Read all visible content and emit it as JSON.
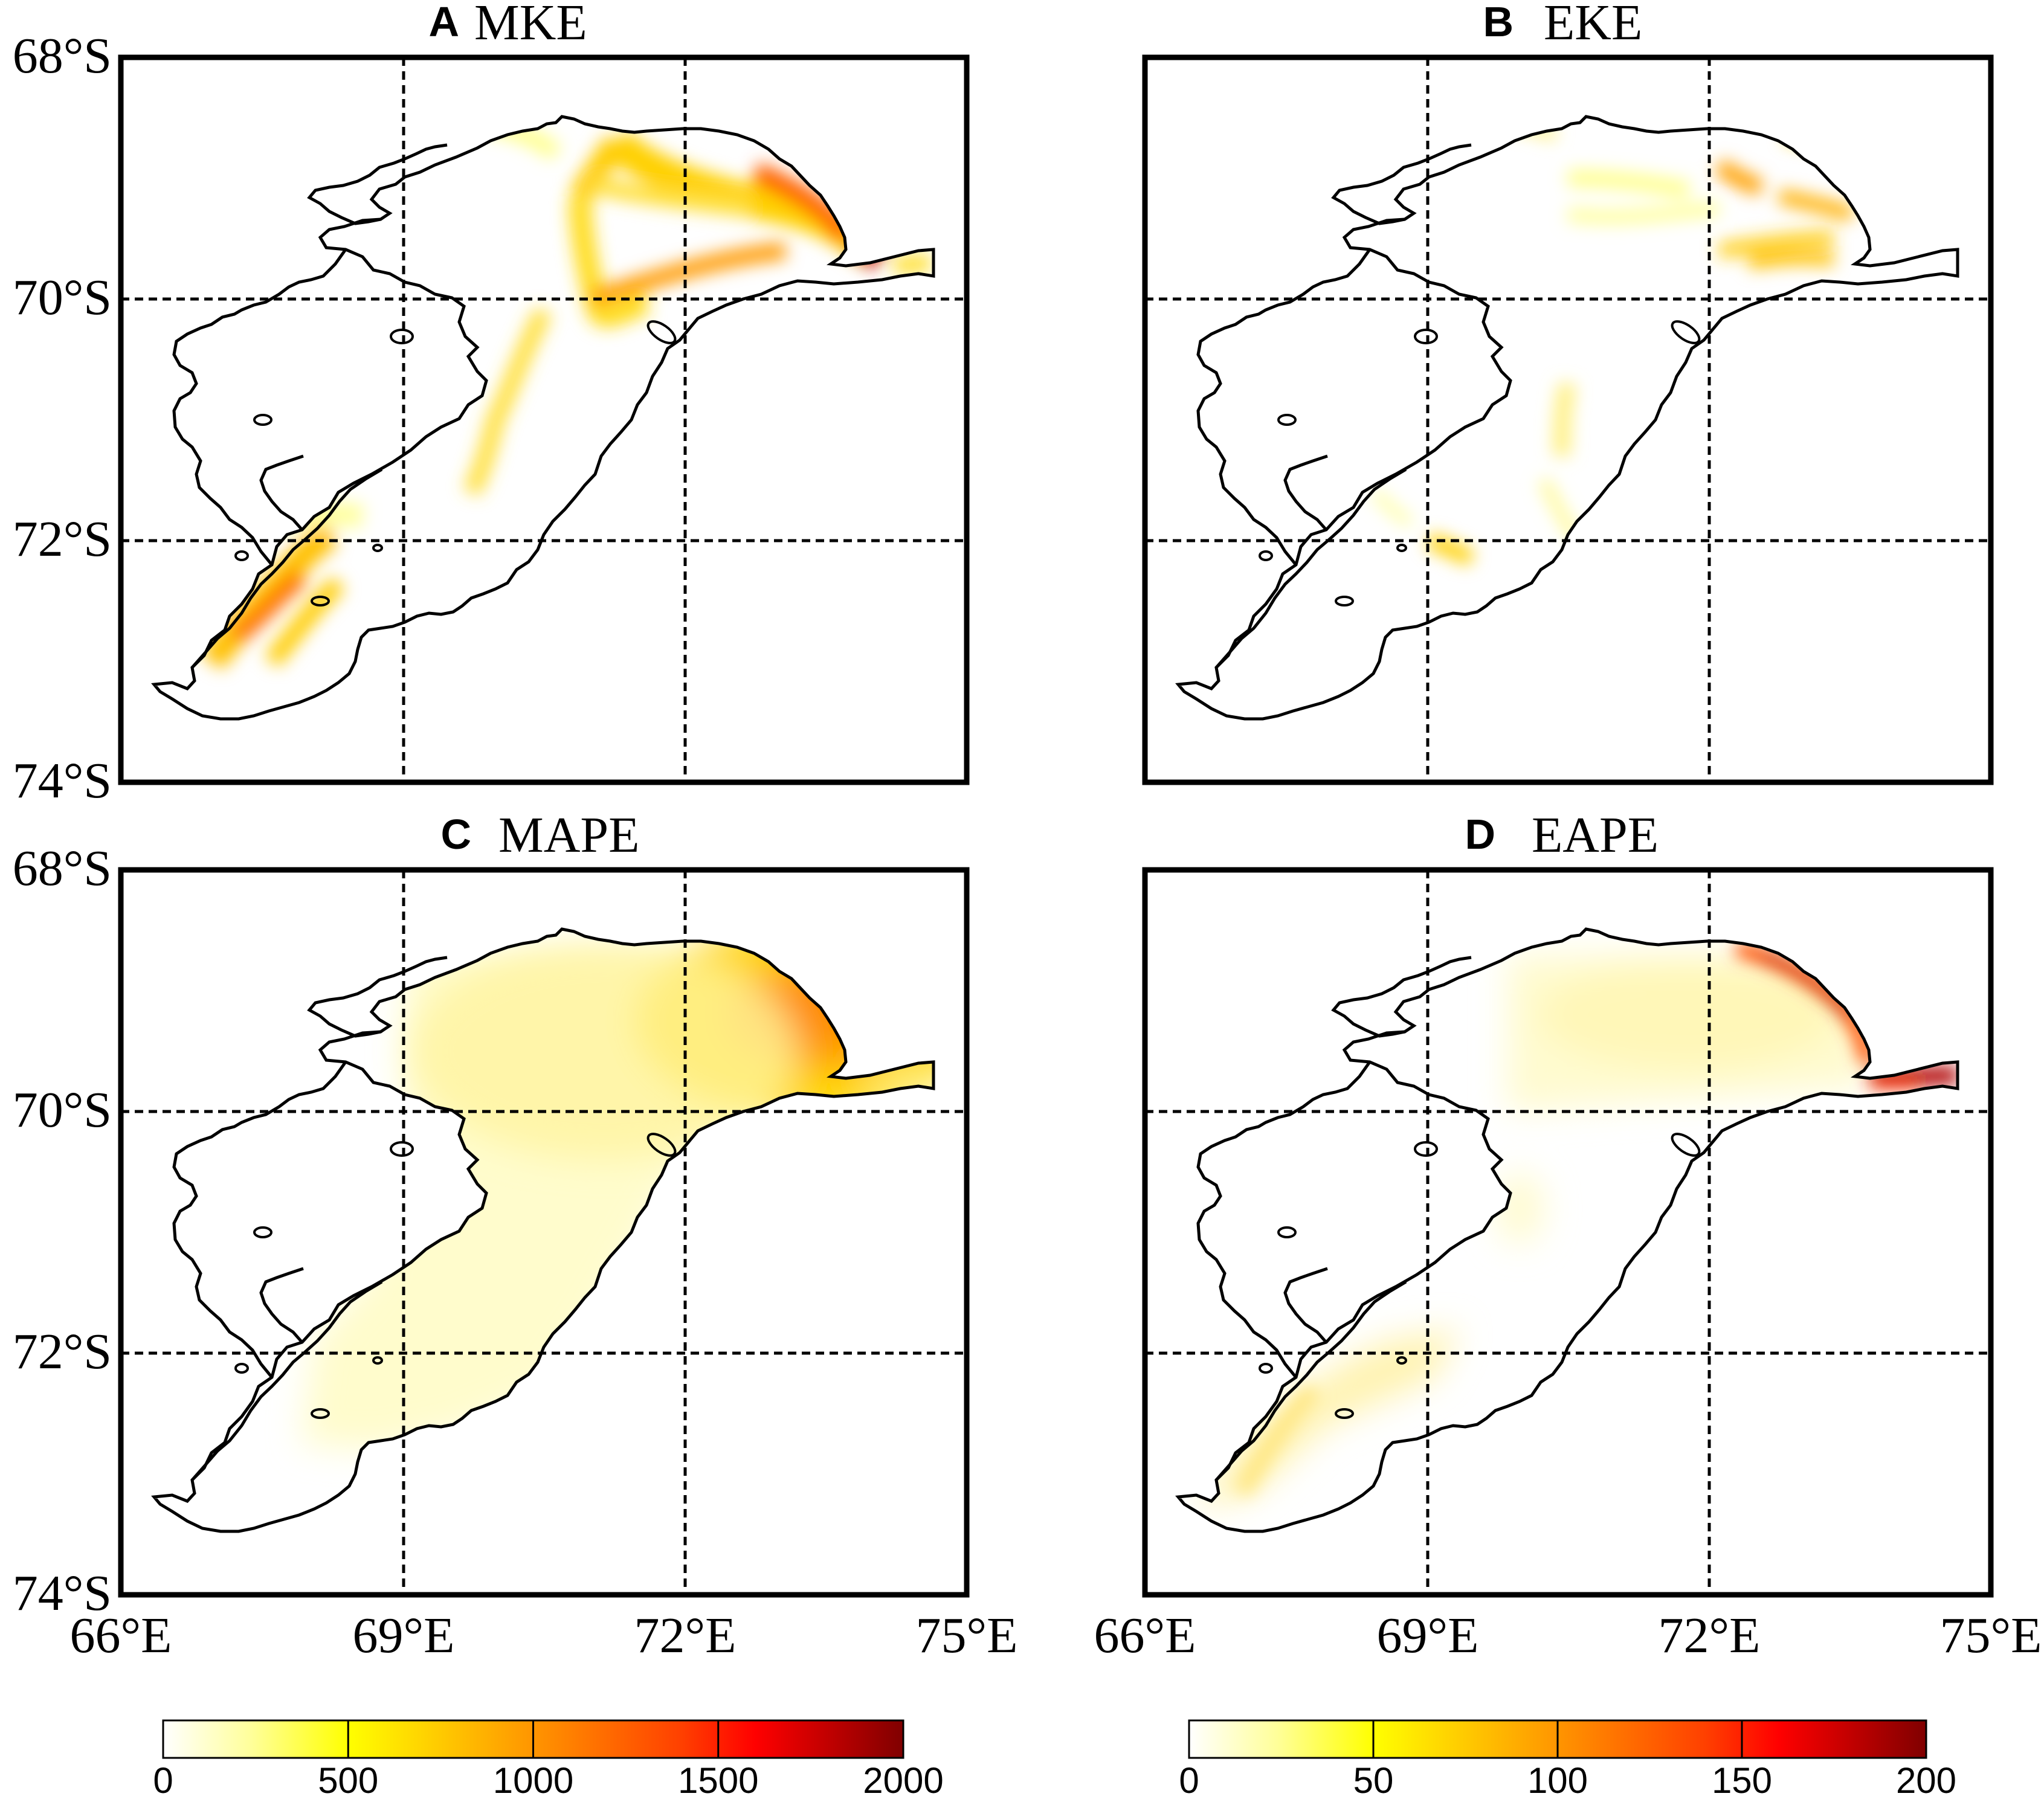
{
  "panels": [
    {
      "letter": "A",
      "name": "MKE",
      "colorbar": 0
    },
    {
      "letter": "B",
      "name": "EKE",
      "colorbar": 1
    },
    {
      "letter": "C",
      "name": "MAPE",
      "colorbar": 0
    },
    {
      "letter": "D",
      "name": "EAPE",
      "colorbar": 1
    }
  ],
  "axes": {
    "lon_ticks": [
      "66°E",
      "69°E",
      "72°E",
      "75°E"
    ],
    "lat_ticks": [
      "68°S",
      "70°S",
      "72°S",
      "74°S"
    ],
    "lon_range": [
      66,
      75
    ],
    "lat_range": [
      -74,
      -68
    ],
    "gridlines": "dashed"
  },
  "colorbars": [
    {
      "ticks": [
        "0",
        "500",
        "1000",
        "1500",
        "2000"
      ],
      "range": [
        0,
        2000
      ]
    },
    {
      "ticks": [
        "0",
        "50",
        "100",
        "150",
        "200"
      ],
      "range": [
        0,
        200
      ]
    }
  ],
  "colormap": [
    "#ffffff",
    "#ffff99",
    "#ffff00",
    "#ffbf00",
    "#ff8000",
    "#ff4000",
    "#ff0000",
    "#c00000",
    "#800000"
  ],
  "coastline_color": "#000000"
}
